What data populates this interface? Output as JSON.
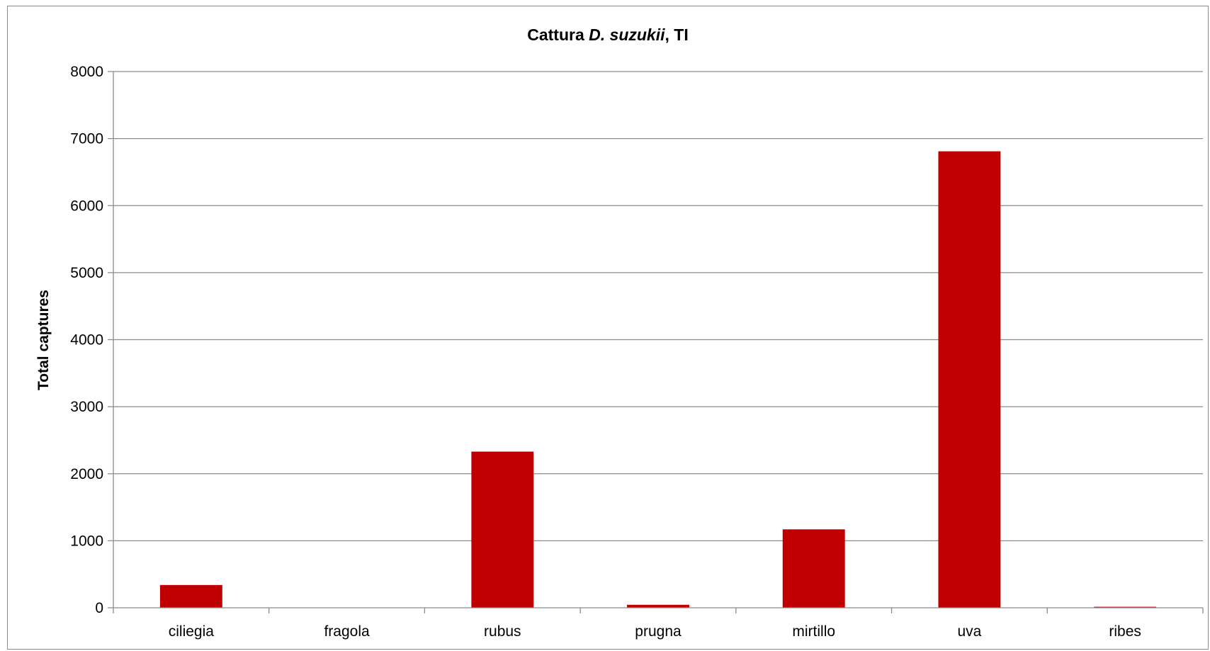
{
  "chart_data": {
    "type": "bar",
    "title_parts": {
      "prefix": "Cattura ",
      "species": "D. suzukii",
      "suffix": ", TI"
    },
    "xlabel": "",
    "ylabel": "Total captures",
    "categories": [
      "ciliegia",
      "fragola",
      "rubus",
      "prugna",
      "mirtillo",
      "uva",
      "ribes"
    ],
    "values": [
      340,
      0,
      2330,
      45,
      1170,
      6810,
      15
    ],
    "ylim": [
      0,
      8000
    ],
    "yticks": [
      0,
      1000,
      2000,
      3000,
      4000,
      5000,
      6000,
      7000,
      8000
    ],
    "grid": true,
    "legend": "none",
    "bar_color": "#c00000"
  }
}
